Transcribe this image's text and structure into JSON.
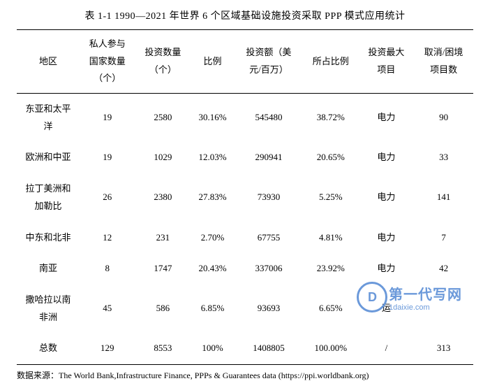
{
  "title": "表 1-1 1990—2021 年世界 6 个区域基础设施投资采取 PPP 模式应用统计",
  "columns": [
    "地区",
    "私人参与\n国家数量\n（个）",
    "投资数量\n（个）",
    "比例",
    "投资额（美\n元/百万）",
    "所占比例",
    "投资最大\n项目",
    "取消/困境\n项目数"
  ],
  "rows": [
    [
      "东亚和太平\n洋",
      "19",
      "2580",
      "30.16%",
      "545480",
      "38.72%",
      "电力",
      "90"
    ],
    [
      "欧洲和中亚",
      "19",
      "1029",
      "12.03%",
      "290941",
      "20.65%",
      "电力",
      "33"
    ],
    [
      "拉丁美洲和\n加勒比",
      "26",
      "2380",
      "27.83%",
      "73930",
      "5.25%",
      "电力",
      "141"
    ],
    [
      "中东和北非",
      "12",
      "231",
      "2.70%",
      "67755",
      "4.81%",
      "电力",
      "7"
    ],
    [
      "南亚",
      "8",
      "1747",
      "20.43%",
      "337006",
      "23.92%",
      "电力",
      "42"
    ],
    [
      "撒哈拉以南\n非洲",
      "45",
      "586",
      "6.85%",
      "93693",
      "6.65%",
      "运",
      ""
    ],
    [
      "总数",
      "129",
      "8553",
      "100%",
      "1408805",
      "100.00%",
      "/",
      "313"
    ]
  ],
  "source": "数据来源：The World Bank,Infrastructure Finance, PPPs & Guarantees data (https://ppi.worldbank.org)",
  "watermark": {
    "circle": "D",
    "cn": "第一代写网",
    "en": "1daixie.com"
  },
  "colors": {
    "text": "#000000",
    "border": "#000000",
    "watermark": "#5b8fd6",
    "background": "#ffffff"
  }
}
